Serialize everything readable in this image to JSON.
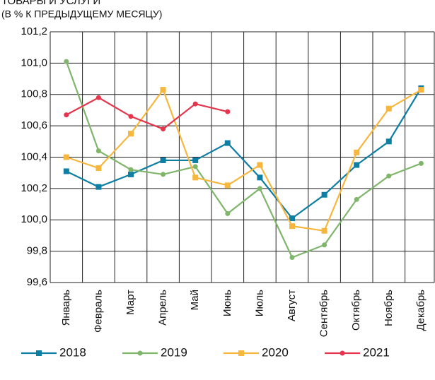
{
  "chart_data": {
    "type": "line",
    "title": "ТОВАРЫ И УСЛУГИ",
    "subtitle": "(В % К ПРЕДЫДУЩЕМУ МЕСЯЦУ)",
    "categories": [
      "Январь",
      "Февраль",
      "Март",
      "Апрель",
      "Май",
      "Июнь",
      "Июль",
      "Август",
      "Сентябрь",
      "Октябрь",
      "Ноябрь",
      "Декабрь"
    ],
    "series": [
      {
        "name": "2018",
        "color": "#0e7ea3",
        "marker": "square",
        "values": [
          100.31,
          100.21,
          100.29,
          100.38,
          100.38,
          100.49,
          100.27,
          100.01,
          100.16,
          100.35,
          100.5,
          100.84
        ]
      },
      {
        "name": "2019",
        "color": "#80b56c",
        "marker": "circle",
        "values": [
          101.01,
          100.44,
          100.32,
          100.29,
          100.34,
          100.04,
          100.2,
          99.76,
          99.84,
          100.13,
          100.28,
          100.36
        ]
      },
      {
        "name": "2020",
        "color": "#f7b73e",
        "marker": "square",
        "values": [
          100.4,
          100.33,
          100.55,
          100.83,
          100.27,
          100.22,
          100.35,
          99.96,
          99.93,
          100.43,
          100.71,
          100.83
        ]
      },
      {
        "name": "2021",
        "color": "#e5344b",
        "marker": "circle",
        "values": [
          100.67,
          100.78,
          100.66,
          100.58,
          100.74,
          100.69,
          null,
          null,
          null,
          null,
          null,
          null
        ]
      }
    ],
    "ylim": [
      99.6,
      101.2
    ],
    "yticks": [
      {
        "value": 99.6,
        "label": "99,6"
      },
      {
        "value": 99.8,
        "label": "99,8"
      },
      {
        "value": 100.0,
        "label": "100,0"
      },
      {
        "value": 100.2,
        "label": "100,2"
      },
      {
        "value": 100.4,
        "label": "100,4"
      },
      {
        "value": 100.6,
        "label": "100,6"
      },
      {
        "value": 100.8,
        "label": "100,8"
      },
      {
        "value": 101.0,
        "label": "101,0"
      },
      {
        "value": 101.2,
        "label": "101,2"
      }
    ],
    "grid": true,
    "legend": "bottom"
  }
}
